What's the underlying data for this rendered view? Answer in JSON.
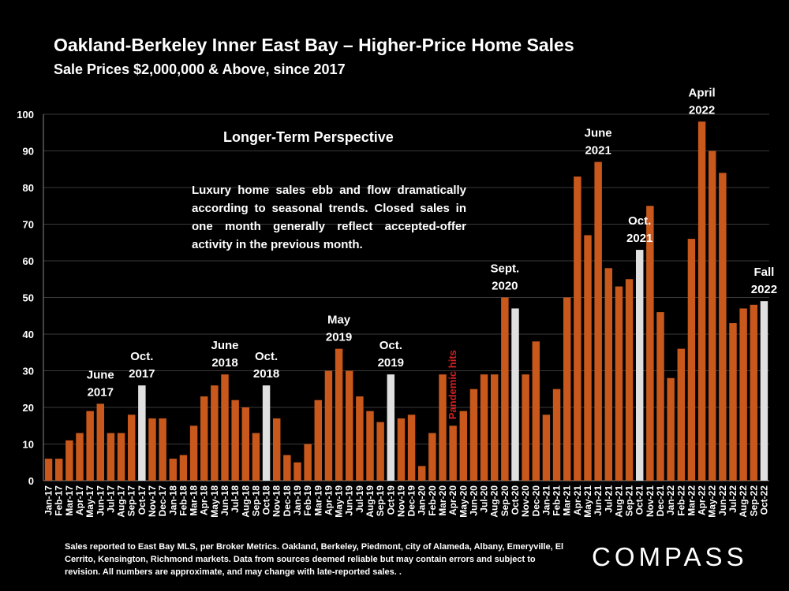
{
  "header": {
    "title": "Oakland-Berkeley Inner East Bay – Higher-Price Home Sales",
    "subtitle": "Sale Prices $2,000,000 & Above, since 2017"
  },
  "panel": {
    "heading": "Longer-Term Perspective",
    "note": "Luxury home sales ebb and flow dramatically according to seasonal trends. Closed sales in one month generally reflect accepted-offer activity in the previous month."
  },
  "footer": {
    "note": "Sales reported to East Bay MLS, per Broker Metrics. Oakland, Berkeley, Piedmont, city of Alameda, Albany, Emeryville, El Cerrito, Kensington, Richmond markets. Data from sources deemed reliable but may contain errors and subject to revision. All numbers are approximate, and may change with late-reported sales. .",
    "logo": "COMPASS"
  },
  "chart_data": {
    "type": "bar",
    "title": "Oakland-Berkeley Inner East Bay – Higher-Price Home Sales",
    "subtitle": "Sale Prices $2,000,000 & Above, since 2017",
    "ylim": [
      0,
      100
    ],
    "yticks": [
      0,
      10,
      20,
      30,
      40,
      50,
      60,
      70,
      80,
      90,
      100
    ],
    "grid": true,
    "bar_color": "#c8581c",
    "highlight_color": "#e0e0e0",
    "annotation_color": "#d42020",
    "categories": [
      "Jan-17",
      "Feb-17",
      "Mar-17",
      "Apr-17",
      "May-17",
      "Jun-17",
      "Jul-17",
      "Aug-17",
      "Sep-17",
      "Oct-17",
      "Nov-17",
      "Dec-17",
      "Jan-18",
      "Feb-18",
      "Mar-18",
      "Apr-18",
      "May-18",
      "Jun-18",
      "Jul-18",
      "Aug-18",
      "Sep-18",
      "Oct-18",
      "Nov-18",
      "Dec-18",
      "Jan-19",
      "Feb-19",
      "Mar-19",
      "Apr-19",
      "May-19",
      "Jun-19",
      "Jul-19",
      "Aug-19",
      "Sep-19",
      "Oct-19",
      "Nov-19",
      "Dec-19",
      "Jan-20",
      "Feb-20",
      "Mar-20",
      "Apr-20",
      "May-20",
      "Jun-20",
      "Jul-20",
      "Aug-20",
      "Sep-20",
      "Oct-20",
      "Nov-20",
      "Dec-20",
      "Jan-21",
      "Feb-21",
      "Mar-21",
      "Apr-21",
      "May-21",
      "Jun-21",
      "Jul-21",
      "Aug-21",
      "Sep-21",
      "Oct-21",
      "Nov-21",
      "Dec-21",
      "Jan-22",
      "Feb-22",
      "Mar-22",
      "Apr-22",
      "May-22",
      "Jun-22",
      "Jul-22",
      "Aug-22",
      "Sep-22",
      "Oct-22"
    ],
    "values": [
      6,
      6,
      11,
      13,
      19,
      21,
      13,
      13,
      18,
      26,
      17,
      17,
      6,
      7,
      15,
      23,
      26,
      29,
      22,
      20,
      13,
      26,
      17,
      7,
      5,
      10,
      22,
      30,
      36,
      30,
      23,
      19,
      16,
      29,
      17,
      18,
      4,
      13,
      29,
      15,
      19,
      25,
      29,
      29,
      50,
      47,
      29,
      38,
      18,
      25,
      50,
      83,
      67,
      87,
      58,
      53,
      55,
      63,
      75,
      46,
      28,
      36,
      66,
      98,
      90,
      84,
      43,
      47,
      48,
      49
    ],
    "highlighted": [
      "Oct-17",
      "Oct-18",
      "Oct-19",
      "Oct-20",
      "Oct-21",
      "Oct-22"
    ],
    "annotations": [
      {
        "at": "Jun-17",
        "lines": [
          "June",
          "2017"
        ]
      },
      {
        "at": "Oct-17",
        "lines": [
          "Oct.",
          "2017"
        ]
      },
      {
        "at": "Jun-18",
        "lines": [
          "June",
          "2018"
        ]
      },
      {
        "at": "Oct-18",
        "lines": [
          "Oct.",
          "2018"
        ]
      },
      {
        "at": "May-19",
        "lines": [
          "May",
          "2019"
        ]
      },
      {
        "at": "Oct-19",
        "lines": [
          "Oct.",
          "2019"
        ]
      },
      {
        "at": "Sep-20",
        "lines": [
          "Sept.",
          "2020"
        ]
      },
      {
        "at": "Jun-21",
        "lines": [
          "June",
          "2021"
        ]
      },
      {
        "at": "Oct-21",
        "lines": [
          "Oct.",
          "2021"
        ]
      },
      {
        "at": "Apr-22",
        "lines": [
          "April",
          "2022"
        ]
      },
      {
        "at": "Oct-22",
        "lines": [
          "Fall",
          "2022"
        ]
      }
    ],
    "vertical_annotation": {
      "at": "Apr-20",
      "text": "Pandemic hits"
    }
  }
}
